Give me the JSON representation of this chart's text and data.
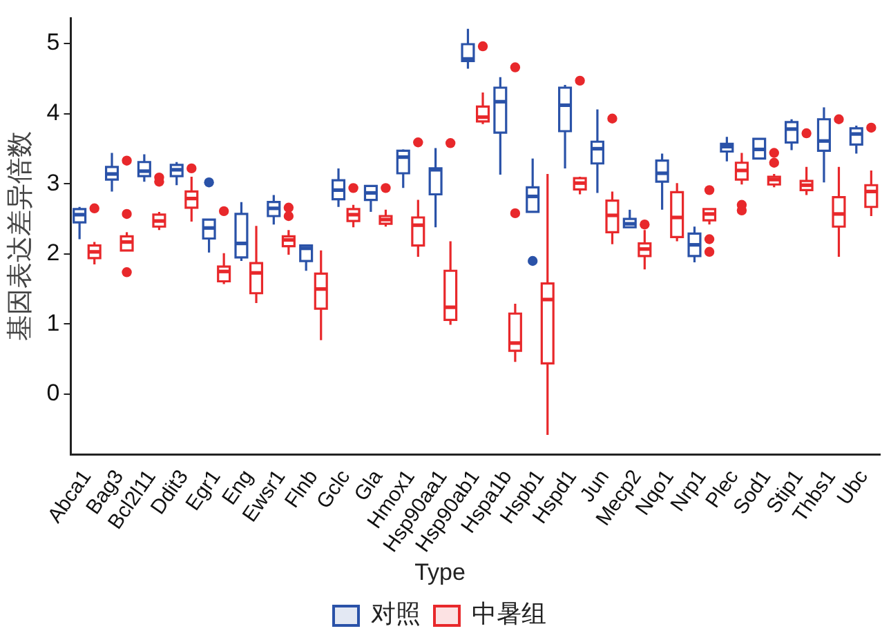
{
  "chart_data": {
    "type": "box",
    "ylabel": "基因表达差异倍数",
    "legend_title": "Type",
    "legend": "bottom",
    "grid": false,
    "ylim": [
      -0.86,
      5.36
    ],
    "yticks": [
      0,
      1,
      2,
      3,
      4,
      5
    ],
    "categories": [
      "Abca1",
      "Bag3",
      "Bcl2l11",
      "Ddit3",
      "Egr1",
      "Eng",
      "Ewsr1",
      "Flnb",
      "Gclc",
      "Gla",
      "Hmox1",
      "Hsp90aa1",
      "Hsp90ab1",
      "Hspa1b",
      "Hspb1",
      "Hspd1",
      "Jun",
      "Mecp2",
      "Nqo1",
      "Nrp1",
      "Plec",
      "Sod1",
      "Stip1",
      "Thbs1",
      "Ubc"
    ],
    "series": [
      {
        "name": "对照",
        "color": "#2a52a8",
        "boxes": [
          {
            "low": 2.21,
            "q1": 2.45,
            "median": 2.56,
            "q3": 2.64,
            "high": 2.67
          },
          {
            "low": 2.89,
            "q1": 3.06,
            "median": 3.14,
            "q3": 3.24,
            "high": 3.44
          },
          {
            "low": 3.03,
            "q1": 3.11,
            "median": 3.18,
            "q3": 3.31,
            "high": 3.42
          },
          {
            "low": 2.98,
            "q1": 3.11,
            "median": 3.2,
            "q3": 3.27,
            "high": 3.31
          },
          {
            "low": 2.02,
            "q1": 2.22,
            "median": 2.37,
            "q3": 2.49,
            "high": 2.49,
            "outliers": [
              3.02
            ]
          },
          {
            "low": 1.9,
            "q1": 1.95,
            "median": 2.15,
            "q3": 2.57,
            "high": 2.74
          },
          {
            "low": 2.42,
            "q1": 2.54,
            "median": 2.65,
            "q3": 2.74,
            "high": 2.84
          },
          {
            "low": 1.76,
            "q1": 1.9,
            "median": 2.08,
            "q3": 2.12,
            "high": 2.12
          },
          {
            "low": 2.67,
            "q1": 2.78,
            "median": 2.91,
            "q3": 3.05,
            "high": 3.22
          },
          {
            "low": 2.6,
            "q1": 2.77,
            "median": 2.87,
            "q3": 2.97,
            "high": 2.97
          },
          {
            "low": 2.94,
            "q1": 3.15,
            "median": 3.38,
            "q3": 3.47,
            "high": 3.49
          },
          {
            "low": 2.38,
            "q1": 2.85,
            "median": 3.2,
            "q3": 3.22,
            "high": 3.51
          },
          {
            "low": 4.64,
            "q1": 4.75,
            "median": 4.78,
            "q3": 4.99,
            "high": 5.21
          },
          {
            "low": 3.13,
            "q1": 3.73,
            "median": 4.17,
            "q3": 4.37,
            "high": 4.52
          },
          {
            "low": 2.6,
            "q1": 2.6,
            "median": 2.82,
            "q3": 2.95,
            "high": 3.36,
            "outliers": [
              1.9
            ]
          },
          {
            "low": 3.22,
            "q1": 3.75,
            "median": 4.12,
            "q3": 4.37,
            "high": 4.41
          },
          {
            "low": 2.87,
            "q1": 3.29,
            "median": 3.5,
            "q3": 3.6,
            "high": 4.06
          },
          {
            "low": 2.38,
            "q1": 2.38,
            "median": 2.43,
            "q3": 2.5,
            "high": 2.63
          },
          {
            "low": 2.63,
            "q1": 3.03,
            "median": 3.15,
            "q3": 3.33,
            "high": 3.43
          },
          {
            "low": 1.88,
            "q1": 1.97,
            "median": 2.13,
            "q3": 2.29,
            "high": 2.39
          },
          {
            "low": 3.32,
            "q1": 3.46,
            "median": 3.53,
            "q3": 3.57,
            "high": 3.67
          },
          {
            "low": 3.36,
            "q1": 3.36,
            "median": 3.49,
            "q3": 3.64,
            "high": 3.64
          },
          {
            "low": 3.48,
            "q1": 3.59,
            "median": 3.78,
            "q3": 3.88,
            "high": 3.92
          },
          {
            "low": 3.02,
            "q1": 3.47,
            "median": 3.61,
            "q3": 3.92,
            "high": 4.09
          },
          {
            "low": 3.43,
            "q1": 3.56,
            "median": 3.71,
            "q3": 3.79,
            "high": 3.83
          }
        ]
      },
      {
        "name": "中暑组",
        "color": "#e8282b",
        "boxes": [
          {
            "low": 1.85,
            "q1": 1.94,
            "median": 2.03,
            "q3": 2.12,
            "high": 2.17,
            "outliers": [
              2.65
            ]
          },
          {
            "low": 2.05,
            "q1": 2.05,
            "median": 2.17,
            "q3": 2.25,
            "high": 2.31,
            "outliers": [
              3.33,
              2.57,
              1.74
            ]
          },
          {
            "low": 2.34,
            "q1": 2.39,
            "median": 2.47,
            "q3": 2.56,
            "high": 2.6,
            "outliers": [
              3.09,
              3.03
            ]
          },
          {
            "low": 2.46,
            "q1": 2.66,
            "median": 2.79,
            "q3": 2.89,
            "high": 3.1,
            "outliers": [
              3.22
            ]
          },
          {
            "low": 1.57,
            "q1": 1.61,
            "median": 1.75,
            "q3": 1.82,
            "high": 2.01,
            "outliers": [
              2.61
            ]
          },
          {
            "low": 1.3,
            "q1": 1.44,
            "median": 1.73,
            "q3": 1.87,
            "high": 2.4
          },
          {
            "low": 1.99,
            "q1": 2.11,
            "median": 2.2,
            "q3": 2.25,
            "high": 2.34,
            "outliers": [
              2.66,
              2.54
            ]
          },
          {
            "low": 0.77,
            "q1": 1.22,
            "median": 1.5,
            "q3": 1.72,
            "high": 2.05
          },
          {
            "low": 2.38,
            "q1": 2.47,
            "median": 2.56,
            "q3": 2.64,
            "high": 2.7,
            "outliers": [
              2.94
            ]
          },
          {
            "low": 2.39,
            "q1": 2.43,
            "median": 2.49,
            "q3": 2.54,
            "high": 2.63,
            "outliers": [
              2.94
            ]
          },
          {
            "low": 1.96,
            "q1": 2.12,
            "median": 2.41,
            "q3": 2.52,
            "high": 2.77,
            "outliers": [
              3.59
            ]
          },
          {
            "low": 0.99,
            "q1": 1.06,
            "median": 1.24,
            "q3": 1.76,
            "high": 2.18,
            "outliers": [
              3.58
            ]
          },
          {
            "low": 3.85,
            "q1": 3.89,
            "median": 3.95,
            "q3": 4.1,
            "high": 4.3,
            "outliers": [
              4.96
            ]
          },
          {
            "low": 0.46,
            "q1": 0.62,
            "median": 0.73,
            "q3": 1.15,
            "high": 1.29,
            "outliers": [
              4.66,
              2.58
            ]
          },
          {
            "low": -0.58,
            "q1": 0.44,
            "median": 1.35,
            "q3": 1.58,
            "high": 3.14
          },
          {
            "low": 2.85,
            "q1": 2.92,
            "median": 3.01,
            "q3": 3.08,
            "high": 3.1,
            "outliers": [
              4.47
            ]
          },
          {
            "low": 2.14,
            "q1": 2.31,
            "median": 2.55,
            "q3": 2.76,
            "high": 2.89,
            "outliers": [
              3.93
            ]
          },
          {
            "low": 1.78,
            "q1": 1.97,
            "median": 2.07,
            "q3": 2.15,
            "high": 2.34,
            "outliers": [
              2.42
            ]
          },
          {
            "low": 2.18,
            "q1": 2.24,
            "median": 2.52,
            "q3": 2.88,
            "high": 3.01
          },
          {
            "low": 2.42,
            "q1": 2.48,
            "median": 2.57,
            "q3": 2.64,
            "high": 2.64,
            "outliers": [
              2.91,
              2.21,
              2.03
            ]
          },
          {
            "low": 2.99,
            "q1": 3.06,
            "median": 3.19,
            "q3": 3.3,
            "high": 3.44,
            "outliers": [
              2.7,
              2.62
            ]
          },
          {
            "low": 2.95,
            "q1": 2.99,
            "median": 3.06,
            "q3": 3.1,
            "high": 3.14,
            "outliers": [
              3.44,
              3.3
            ]
          },
          {
            "low": 2.84,
            "q1": 2.91,
            "median": 2.98,
            "q3": 3.04,
            "high": 3.24,
            "outliers": [
              3.72
            ]
          },
          {
            "low": 1.96,
            "q1": 2.39,
            "median": 2.57,
            "q3": 2.81,
            "high": 3.24,
            "outliers": [
              3.92
            ]
          },
          {
            "low": 2.54,
            "q1": 2.67,
            "median": 2.89,
            "q3": 2.98,
            "high": 3.19,
            "outliers": [
              3.8
            ]
          }
        ]
      }
    ]
  }
}
